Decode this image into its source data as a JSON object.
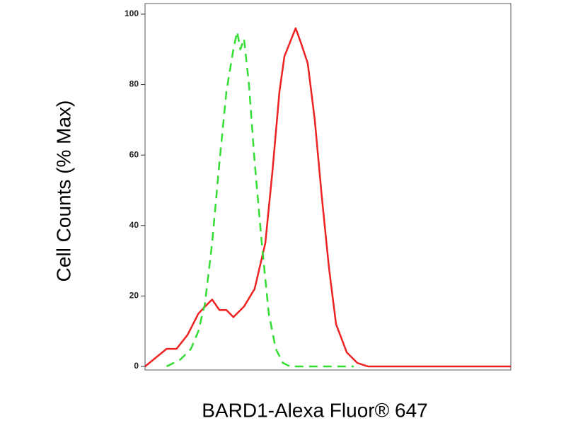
{
  "chart_data": {
    "type": "line",
    "xlabel": "BARD1-Alexa Fluor® 647",
    "ylabel": "Cell Counts (% Max)",
    "xscale": "log",
    "xlim": [
      34,
      16750
    ],
    "ylim": [
      -1,
      103
    ],
    "yticks": [
      0,
      20,
      40,
      60,
      80,
      100
    ],
    "series": [
      {
        "color": "#ee2222",
        "dash": false,
        "x": [
          34,
          49,
          58,
          70,
          84,
          94,
          106,
          120,
          135,
          152,
          182,
          218,
          261,
          294,
          332,
          361,
          397,
          437,
          476,
          536,
          604,
          681,
          768,
          866,
          1038,
          1242,
          1486,
          16750
        ],
        "values": [
          0,
          5,
          5,
          9,
          15,
          17,
          19,
          16,
          16,
          14,
          17,
          22,
          35,
          55,
          78,
          88,
          92,
          96,
          92,
          86,
          70,
          48,
          28,
          12,
          4,
          1,
          0,
          0
        ]
      },
      {
        "color": "#33dd33",
        "dash": true,
        "x": [
          49,
          62,
          74,
          84,
          94,
          106,
          120,
          135,
          152,
          162,
          171,
          182,
          198,
          218,
          246,
          277,
          312,
          352,
          397,
          1171
        ],
        "values": [
          0,
          2,
          5,
          10,
          18,
          35,
          58,
          78,
          90,
          95,
          90,
          93,
          80,
          58,
          35,
          15,
          5,
          1,
          0,
          0
        ]
      }
    ]
  }
}
